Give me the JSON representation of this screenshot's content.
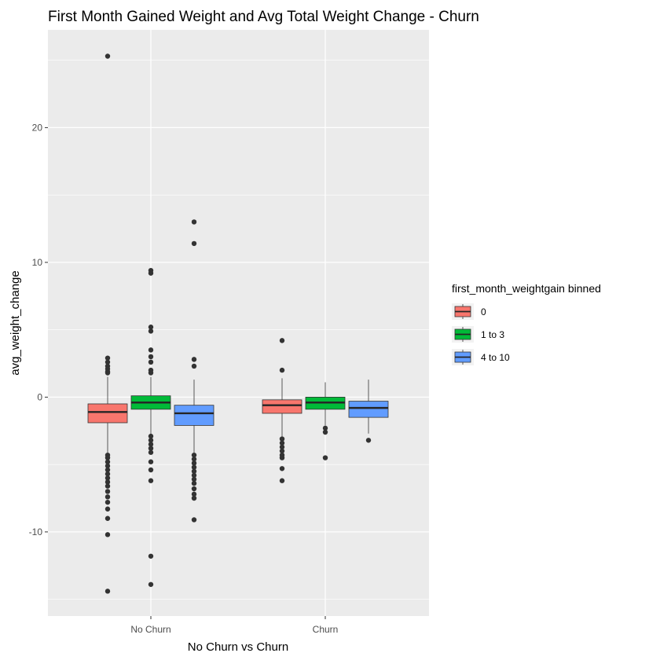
{
  "chart_data": {
    "type": "boxplot",
    "title": "First Month Gained Weight and Avg Total Weight Change - Churn",
    "xlabel": "No Churn vs Churn",
    "ylabel": "avg_weight_change",
    "ylim": [
      -16,
      27
    ],
    "yticks": [
      -10,
      0,
      10,
      20
    ],
    "categories": [
      "No Churn",
      "Churn"
    ],
    "grid": true,
    "legend": {
      "title": "first_month_weightgain binned",
      "position": "right",
      "entries": [
        "0",
        "1 to 3",
        "4 to 10"
      ]
    },
    "colors": [
      "#F8766D",
      "#00BA38",
      "#619CFF"
    ],
    "series": [
      {
        "name": "0",
        "color": "#F8766D",
        "boxes": [
          {
            "category": "No Churn",
            "min": -4.2,
            "q1": -1.9,
            "median": -1.1,
            "q3": -0.5,
            "max": 1.5,
            "outliers": [
              25.3,
              2.9,
              2.6,
              2.3,
              2.1,
              1.9,
              1.8,
              -4.3,
              -4.5,
              -4.8,
              -5.1,
              -5.4,
              -5.7,
              -6.0,
              -6.3,
              -6.6,
              -7.0,
              -7.4,
              -7.8,
              -8.3,
              -9.0,
              -10.2,
              -14.4
            ]
          },
          {
            "category": "Churn",
            "min": -3.0,
            "q1": -1.2,
            "median": -0.6,
            "q3": -0.2,
            "max": 1.4,
            "outliers": [
              4.2,
              2.0,
              -3.1,
              -3.4,
              -3.7,
              -4.0,
              -4.3,
              -4.5,
              -5.3,
              -6.2
            ]
          }
        ]
      },
      {
        "name": "1 to 3",
        "color": "#00BA38",
        "boxes": [
          {
            "category": "No Churn",
            "min": -2.8,
            "q1": -0.9,
            "median": -0.4,
            "q3": 0.1,
            "max": 1.5,
            "outliers": [
              9.4,
              9.2,
              5.2,
              4.9,
              3.5,
              3.0,
              2.6,
              2.0,
              1.8,
              -2.9,
              -3.2,
              -3.5,
              -3.8,
              -4.1,
              -4.8,
              -5.4,
              -6.2,
              -11.8,
              -13.9
            ]
          },
          {
            "category": "Churn",
            "min": -2.1,
            "q1": -0.9,
            "median": -0.4,
            "q3": 0.0,
            "max": 1.1,
            "outliers": [
              -2.3,
              -2.6,
              -4.5
            ]
          }
        ]
      },
      {
        "name": "4 to 10",
        "color": "#619CFF",
        "boxes": [
          {
            "category": "No Churn",
            "min": -4.2,
            "q1": -2.1,
            "median": -1.2,
            "q3": -0.6,
            "max": 1.3,
            "outliers": [
              13.0,
              11.4,
              2.8,
              2.3,
              -4.3,
              -4.6,
              -4.9,
              -5.2,
              -5.5,
              -5.8,
              -6.1,
              -6.4,
              -6.8,
              -7.2,
              -7.5,
              -9.1
            ]
          },
          {
            "category": "Churn",
            "min": -2.7,
            "q1": -1.5,
            "median": -0.8,
            "q3": -0.3,
            "max": 1.3,
            "outliers": [
              -3.2
            ]
          }
        ]
      }
    ]
  }
}
